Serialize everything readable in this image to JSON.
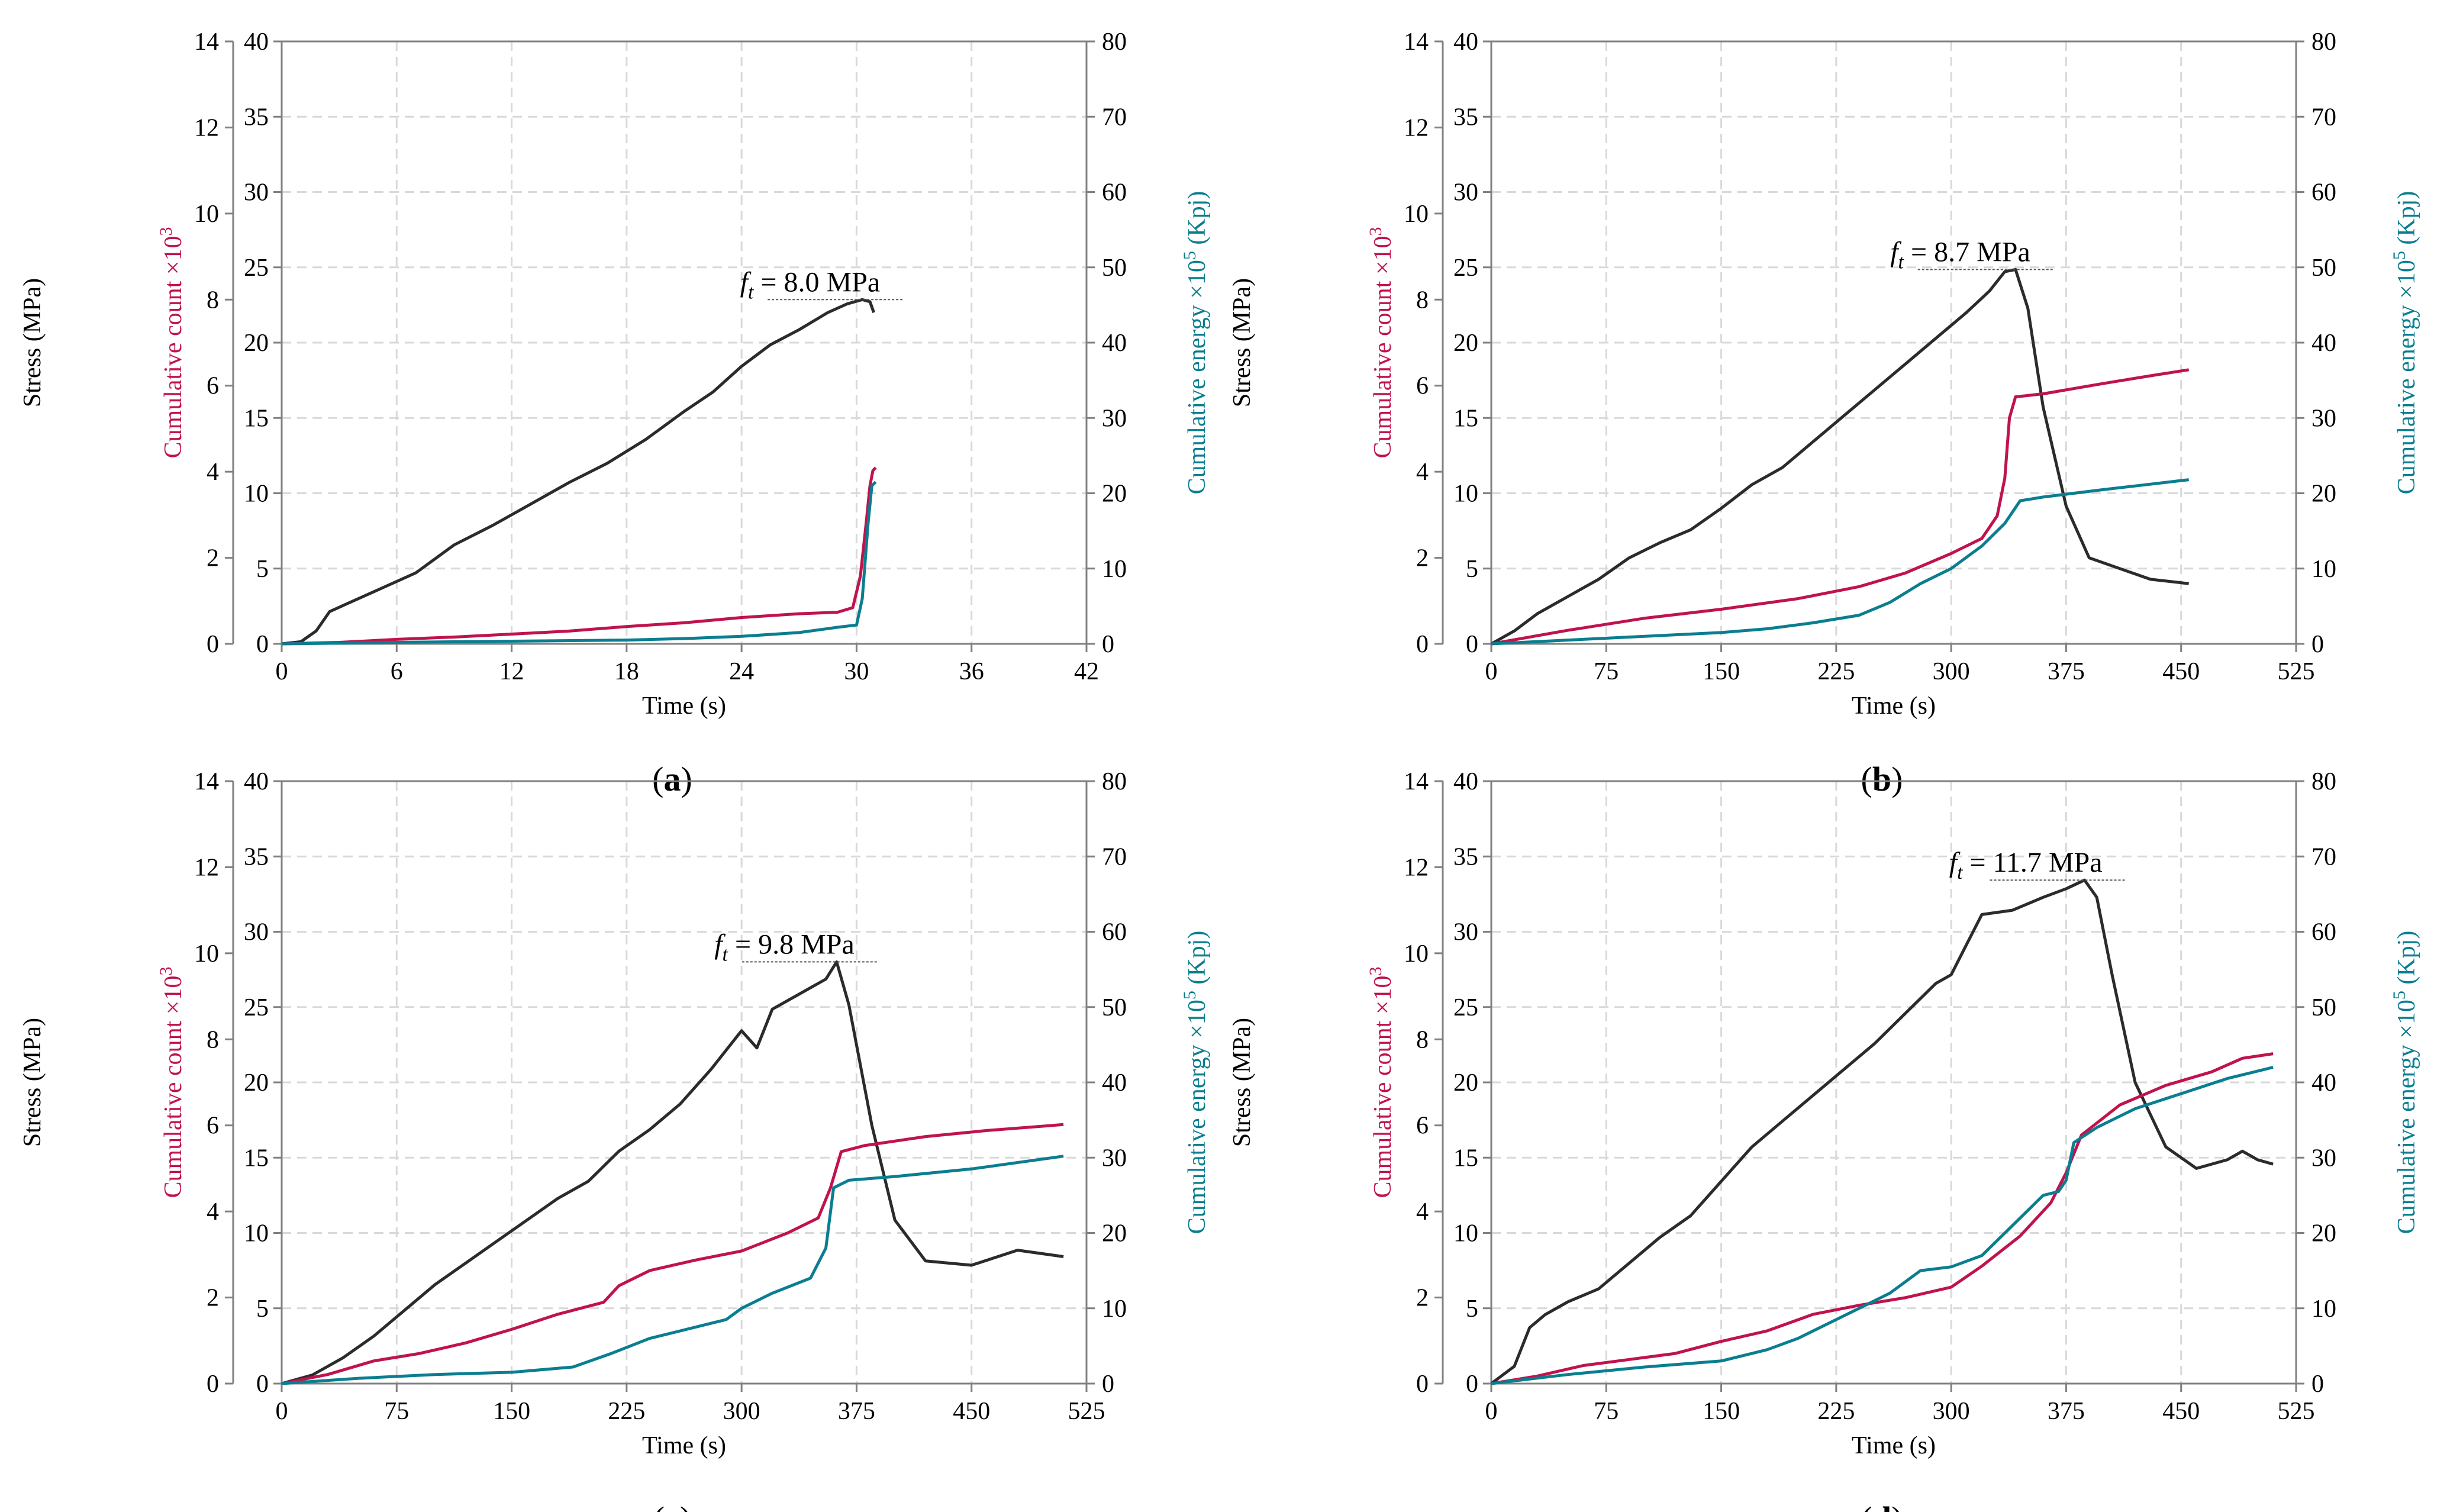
{
  "colors": {
    "stress": "#2b2b2b",
    "count": "#c0134e",
    "energy": "#0a7e90",
    "grid": "#d9d9d9",
    "axis": "#808080"
  },
  "chart_data": [
    {
      "panel": "a",
      "panel_label": "a",
      "type": "line",
      "xlabel": "Time (s)",
      "x_ticks": [
        "0",
        "6",
        "12",
        "18",
        "24",
        "30",
        "36",
        "42"
      ],
      "xlim": [
        0,
        42
      ],
      "stress_axis": {
        "label": "Stress (MPa)",
        "ylim": [
          0,
          14
        ],
        "ticks": [
          "0",
          "2",
          "4",
          "6",
          "8",
          "10",
          "12",
          "14"
        ]
      },
      "count_axis": {
        "label": "Cumulative count ×10",
        "sup": "3",
        "ylim": [
          0,
          40
        ],
        "ticks": [
          "0",
          "5",
          "10",
          "15",
          "20",
          "25",
          "30",
          "35",
          "40"
        ]
      },
      "energy_axis": {
        "label": "Cumulative energy ×10",
        "sup": "5",
        "unit": " (Kpj)",
        "ylim": [
          0,
          80
        ],
        "ticks": [
          "0",
          "10",
          "20",
          "30",
          "40",
          "50",
          "60",
          "70",
          "80"
        ]
      },
      "annotation": {
        "symbol": "f",
        "sub": "t",
        "text": " = 8.0 MPa",
        "peak_x": 30.3,
        "peak_y": 8.0
      },
      "series": [
        {
          "name": "Stress",
          "axis": "stress",
          "x": [
            0,
            1,
            1.8,
            2.5,
            3.5,
            5,
            7,
            9,
            11,
            13,
            15,
            17,
            19,
            21,
            22.5,
            24,
            25.5,
            27,
            28.5,
            29.5,
            30.3,
            30.7,
            30.9
          ],
          "y": [
            0,
            0.05,
            0.3,
            0.75,
            0.95,
            1.25,
            1.65,
            2.3,
            2.75,
            3.25,
            3.75,
            4.2,
            4.75,
            5.4,
            5.85,
            6.45,
            6.95,
            7.3,
            7.7,
            7.9,
            8.0,
            7.95,
            7.7
          ]
        },
        {
          "name": "Cumulative count",
          "axis": "count",
          "x": [
            0,
            3,
            6,
            9,
            12,
            15,
            18,
            21,
            24,
            27,
            29,
            29.8,
            30.2,
            30.5,
            30.7,
            30.85,
            31
          ],
          "y": [
            0,
            0.1,
            0.3,
            0.45,
            0.65,
            0.85,
            1.15,
            1.4,
            1.75,
            2.0,
            2.1,
            2.4,
            4.5,
            8,
            10.5,
            11.5,
            11.7
          ]
        },
        {
          "name": "Cumulative energy",
          "axis": "energy",
          "x": [
            0,
            6,
            12,
            18,
            21,
            24,
            27,
            29,
            30,
            30.3,
            30.6,
            30.8,
            31
          ],
          "y": [
            0,
            0.2,
            0.35,
            0.5,
            0.7,
            1.0,
            1.5,
            2.2,
            2.5,
            6,
            16,
            21,
            21.5
          ]
        }
      ]
    },
    {
      "panel": "b",
      "panel_label": "b",
      "type": "line",
      "xlabel": "Time (s)",
      "x_ticks": [
        "0",
        "75",
        "150",
        "225",
        "300",
        "375",
        "450",
        "525"
      ],
      "xlim": [
        0,
        525
      ],
      "stress_axis": {
        "label": "Stress (MPa)",
        "ylim": [
          0,
          14
        ],
        "ticks": [
          "0",
          "2",
          "4",
          "6",
          "8",
          "10",
          "12",
          "14"
        ]
      },
      "count_axis": {
        "label": "Cumulative count ×10",
        "sup": "3",
        "ylim": [
          0,
          40
        ],
        "ticks": [
          "0",
          "5",
          "10",
          "15",
          "20",
          "25",
          "30",
          "35",
          "40"
        ]
      },
      "energy_axis": {
        "label": "Cumulative energy ×10",
        "sup": "5",
        "unit": " (Kpj)",
        "ylim": [
          0,
          80
        ],
        "ticks": [
          "0",
          "10",
          "20",
          "30",
          "40",
          "50",
          "60",
          "70",
          "80"
        ]
      },
      "annotation": {
        "symbol": "f",
        "sub": "t",
        "text": " = 8.7 MPa",
        "peak_x": 340,
        "peak_y": 8.7
      },
      "series": [
        {
          "name": "Stress",
          "axis": "stress",
          "x": [
            0,
            15,
            30,
            50,
            70,
            90,
            110,
            130,
            150,
            170,
            190,
            210,
            230,
            250,
            270,
            290,
            310,
            325,
            335,
            342,
            350,
            360,
            375,
            390,
            410,
            430,
            455
          ],
          "y": [
            0,
            0.3,
            0.7,
            1.1,
            1.5,
            2.0,
            2.35,
            2.65,
            3.15,
            3.7,
            4.1,
            4.7,
            5.3,
            5.9,
            6.5,
            7.1,
            7.7,
            8.2,
            8.65,
            8.7,
            7.8,
            5.5,
            3.2,
            2.0,
            1.75,
            1.5,
            1.4
          ]
        },
        {
          "name": "Cumulative count",
          "axis": "count",
          "x": [
            0,
            50,
            100,
            150,
            200,
            240,
            270,
            300,
            320,
            330,
            335,
            338,
            342,
            360,
            400,
            430,
            455
          ],
          "y": [
            0,
            0.9,
            1.7,
            2.3,
            3.0,
            3.8,
            4.7,
            6.0,
            7.0,
            8.5,
            11,
            15,
            16.4,
            16.6,
            17.3,
            17.8,
            18.2
          ]
        },
        {
          "name": "Cumulative energy",
          "axis": "energy",
          "x": [
            0,
            50,
            100,
            150,
            180,
            210,
            240,
            260,
            280,
            300,
            320,
            335,
            345,
            360,
            400,
            430,
            455
          ],
          "y": [
            0,
            0.5,
            1.0,
            1.5,
            2.0,
            2.8,
            3.8,
            5.5,
            8,
            10,
            13,
            16,
            19,
            19.5,
            20.5,
            21.2,
            21.8
          ]
        }
      ]
    },
    {
      "panel": "c",
      "panel_label": "c",
      "type": "line",
      "xlabel": "Time (s)",
      "x_ticks": [
        "0",
        "75",
        "150",
        "225",
        "300",
        "375",
        "450",
        "525"
      ],
      "xlim": [
        0,
        525
      ],
      "stress_axis": {
        "label": "Stress (MPa)",
        "ylim": [
          0,
          14
        ],
        "ticks": [
          "0",
          "2",
          "4",
          "6",
          "8",
          "10",
          "12",
          "14"
        ]
      },
      "count_axis": {
        "label": "Cumulative count ×10",
        "sup": "3",
        "ylim": [
          0,
          40
        ],
        "ticks": [
          "0",
          "5",
          "10",
          "15",
          "20",
          "25",
          "30",
          "35",
          "40"
        ]
      },
      "energy_axis": {
        "label": "Cumulative energy ×10",
        "sup": "5",
        "unit": " (Kpj)",
        "ylim": [
          0,
          80
        ],
        "ticks": [
          "0",
          "10",
          "20",
          "30",
          "40",
          "50",
          "60",
          "70",
          "80"
        ]
      },
      "annotation": {
        "symbol": "f",
        "sub": "t",
        "text": " = 9.8 MPa",
        "peak_x": 362,
        "peak_y": 9.8
      },
      "series": [
        {
          "name": "Stress",
          "axis": "stress",
          "x": [
            0,
            20,
            40,
            60,
            80,
            100,
            120,
            140,
            160,
            180,
            200,
            220,
            240,
            260,
            280,
            300,
            310,
            320,
            340,
            355,
            362,
            370,
            385,
            400,
            420,
            450,
            480,
            510
          ],
          "y": [
            0,
            0.2,
            0.6,
            1.1,
            1.7,
            2.3,
            2.8,
            3.3,
            3.8,
            4.3,
            4.7,
            5.4,
            5.9,
            6.5,
            7.3,
            8.2,
            7.8,
            8.7,
            9.1,
            9.4,
            9.8,
            8.8,
            6.0,
            3.8,
            2.85,
            2.75,
            3.1,
            2.95
          ]
        },
        {
          "name": "Cumulative count",
          "axis": "count",
          "x": [
            0,
            30,
            60,
            90,
            120,
            150,
            180,
            210,
            220,
            240,
            270,
            300,
            330,
            350,
            358,
            365,
            380,
            420,
            460,
            510
          ],
          "y": [
            0,
            0.6,
            1.5,
            2.0,
            2.7,
            3.6,
            4.6,
            5.4,
            6.5,
            7.5,
            8.2,
            8.8,
            10.0,
            11.0,
            13,
            15.4,
            15.8,
            16.4,
            16.8,
            17.2
          ]
        },
        {
          "name": "Cumulative energy",
          "axis": "energy",
          "x": [
            0,
            50,
            100,
            150,
            190,
            215,
            240,
            270,
            290,
            300,
            320,
            345,
            355,
            360,
            370,
            400,
            450,
            510
          ],
          "y": [
            0,
            0.7,
            1.2,
            1.5,
            2.2,
            4,
            6,
            7.5,
            8.5,
            10,
            12,
            14,
            18,
            26,
            27,
            27.5,
            28.5,
            30.2
          ]
        }
      ]
    },
    {
      "panel": "d",
      "panel_label": "d",
      "type": "line",
      "xlabel": "Time (s)",
      "x_ticks": [
        "0",
        "75",
        "150",
        "225",
        "300",
        "375",
        "450",
        "525"
      ],
      "xlim": [
        0,
        525
      ],
      "stress_axis": {
        "label": "Stress (MPa)",
        "ylim": [
          0,
          14
        ],
        "ticks": [
          "0",
          "2",
          "4",
          "6",
          "8",
          "10",
          "12",
          "14"
        ]
      },
      "count_axis": {
        "label": "Cumulative count ×10",
        "sup": "3",
        "ylim": [
          0,
          40
        ],
        "ticks": [
          "0",
          "5",
          "10",
          "15",
          "20",
          "25",
          "30",
          "35",
          "40"
        ]
      },
      "energy_axis": {
        "label": "Cumulative energy ×10",
        "sup": "5",
        "unit": " (Kpj)",
        "ylim": [
          0,
          80
        ],
        "ticks": [
          "0",
          "10",
          "20",
          "30",
          "40",
          "50",
          "60",
          "70",
          "80"
        ]
      },
      "annotation": {
        "symbol": "f",
        "sub": "t",
        "text": " = 11.7 MPa",
        "peak_x": 387,
        "peak_y": 11.7
      },
      "series": [
        {
          "name": "Stress",
          "axis": "stress",
          "x": [
            0,
            15,
            25,
            35,
            50,
            70,
            90,
            110,
            130,
            150,
            170,
            190,
            210,
            230,
            250,
            270,
            290,
            300,
            310,
            320,
            340,
            360,
            375,
            387,
            395,
            405,
            420,
            440,
            460,
            480,
            490,
            500,
            510
          ],
          "y": [
            0,
            0.4,
            1.3,
            1.6,
            1.9,
            2.2,
            2.8,
            3.4,
            3.9,
            4.7,
            5.5,
            6.1,
            6.7,
            7.3,
            7.9,
            8.6,
            9.3,
            9.5,
            10.2,
            10.9,
            11.0,
            11.3,
            11.5,
            11.7,
            11.3,
            9.5,
            7.0,
            5.5,
            5.0,
            5.2,
            5.4,
            5.2,
            5.1
          ]
        },
        {
          "name": "Cumulative count",
          "axis": "count",
          "x": [
            0,
            30,
            60,
            90,
            120,
            150,
            180,
            210,
            240,
            270,
            300,
            320,
            345,
            365,
            375,
            385,
            410,
            440,
            470,
            490,
            510
          ],
          "y": [
            0,
            0.5,
            1.2,
            1.6,
            2.0,
            2.8,
            3.5,
            4.6,
            5.2,
            5.7,
            6.4,
            7.8,
            9.8,
            12,
            14,
            16.5,
            18.5,
            19.8,
            20.7,
            21.6,
            21.9
          ]
        },
        {
          "name": "Cumulative energy",
          "axis": "energy",
          "x": [
            0,
            50,
            100,
            150,
            180,
            200,
            230,
            260,
            280,
            300,
            320,
            340,
            360,
            370,
            375,
            380,
            395,
            420,
            450,
            480,
            510
          ],
          "y": [
            0,
            1.2,
            2.2,
            3.0,
            4.5,
            6,
            9,
            12,
            15,
            15.5,
            17,
            21,
            25,
            25.5,
            27,
            32,
            34,
            36.5,
            38.5,
            40.5,
            42
          ]
        }
      ]
    }
  ]
}
